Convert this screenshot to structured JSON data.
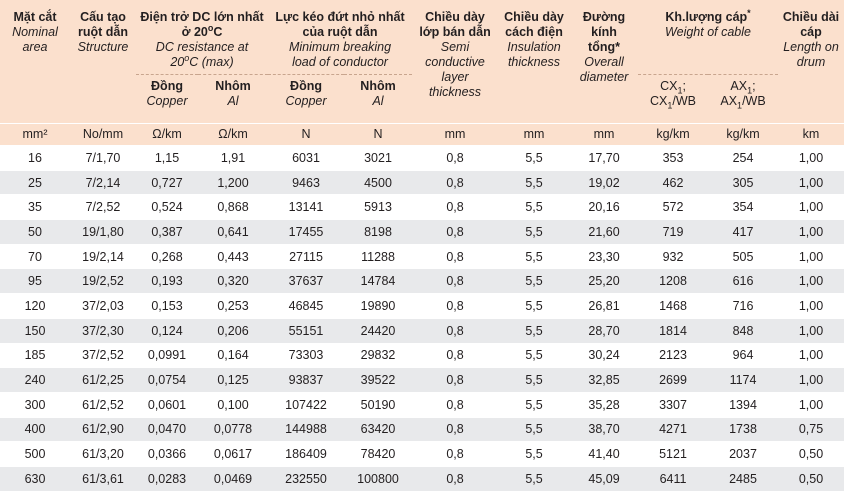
{
  "header": {
    "area": {
      "vi": "Mặt cắt",
      "en1": "Nominal",
      "en2": "area"
    },
    "structure": {
      "vi1": "Cấu tạo",
      "vi2": "ruột dẫn",
      "en": "Structure"
    },
    "dc": {
      "vi1": "Điện trở DC lớn nhất",
      "vi2": "ở 20",
      "vi2sup": "o",
      "vi2tail": "C",
      "en1": "DC resistance at",
      "en2": "20",
      "en2sup": "o",
      "en2tail": "C (max)"
    },
    "breaking": {
      "vi1": "Lực kéo đứt nhỏ nhất",
      "vi2": "của ruột dẫn",
      "en1": "Minimum breaking",
      "en2": "load of conductor"
    },
    "semi": {
      "vi1": "Chiều dày",
      "vi2": "lớp bán dẫn",
      "en1": "Semi",
      "en2": "conductive",
      "en3": "layer",
      "en4": "thickness"
    },
    "insul": {
      "vi1": "Chiều dày",
      "vi2": "cách điện",
      "en1": "Insulation",
      "en2": "thickness"
    },
    "diam": {
      "vi1": "Đường",
      "vi2": "kính",
      "vi3": "tổng*",
      "en1": "Overall",
      "en2": "diameter"
    },
    "weight": {
      "vi": "Kh.lượng cáp",
      "vi_sup": "*",
      "en": "Weight of cable"
    },
    "length": {
      "vi1": "Chiều dài",
      "vi2": "cáp",
      "en1": "Length on",
      "en2": "drum"
    },
    "copper": {
      "vi": "Đồng",
      "en": "Copper"
    },
    "alu": {
      "vi": "Nhôm",
      "en": "Al"
    },
    "cx": {
      "l1a": "CX",
      "l1sub": "1",
      "l1b": ";",
      "l2a": "CX",
      "l2sub": "1",
      "l2b": "/WB"
    },
    "ax": {
      "l1a": "AX",
      "l1sub": "1",
      "l1b": ";",
      "l2a": "AX",
      "l2sub": "1",
      "l2b": "/WB"
    }
  },
  "units": [
    "mm²",
    "No/mm",
    "Ω/km",
    "Ω/km",
    "N",
    "N",
    "mm",
    "mm",
    "mm",
    "kg/km",
    "kg/km",
    "km"
  ],
  "rows": [
    [
      "16",
      "7/1,70",
      "1,15",
      "1,91",
      "6031",
      "3021",
      "0,8",
      "5,5",
      "17,70",
      "353",
      "254",
      "1,00"
    ],
    [
      "25",
      "7/2,14",
      "0,727",
      "1,200",
      "9463",
      "4500",
      "0,8",
      "5,5",
      "19,02",
      "462",
      "305",
      "1,00"
    ],
    [
      "35",
      "7/2,52",
      "0,524",
      "0,868",
      "13141",
      "5913",
      "0,8",
      "5,5",
      "20,16",
      "572",
      "354",
      "1,00"
    ],
    [
      "50",
      "19/1,80",
      "0,387",
      "0,641",
      "17455",
      "8198",
      "0,8",
      "5,5",
      "21,60",
      "719",
      "417",
      "1,00"
    ],
    [
      "70",
      "19/2,14",
      "0,268",
      "0,443",
      "27115",
      "11288",
      "0,8",
      "5,5",
      "23,30",
      "932",
      "505",
      "1,00"
    ],
    [
      "95",
      "19/2,52",
      "0,193",
      "0,320",
      "37637",
      "14784",
      "0,8",
      "5,5",
      "25,20",
      "1208",
      "616",
      "1,00"
    ],
    [
      "120",
      "37/2,03",
      "0,153",
      "0,253",
      "46845",
      "19890",
      "0,8",
      "5,5",
      "26,81",
      "1468",
      "716",
      "1,00"
    ],
    [
      "150",
      "37/2,30",
      "0,124",
      "0,206",
      "55151",
      "24420",
      "0,8",
      "5,5",
      "28,70",
      "1814",
      "848",
      "1,00"
    ],
    [
      "185",
      "37/2,52",
      "0,0991",
      "0,164",
      "73303",
      "29832",
      "0,8",
      "5,5",
      "30,24",
      "2123",
      "964",
      "1,00"
    ],
    [
      "240",
      "61/2,25",
      "0,0754",
      "0,125",
      "93837",
      "39522",
      "0,8",
      "5,5",
      "32,85",
      "2699",
      "1174",
      "1,00"
    ],
    [
      "300",
      "61/2,52",
      "0,0601",
      "0,100",
      "107422",
      "50190",
      "0,8",
      "5,5",
      "35,28",
      "3307",
      "1394",
      "1,00"
    ],
    [
      "400",
      "61/2,90",
      "0,0470",
      "0,0778",
      "144988",
      "63420",
      "0,8",
      "5,5",
      "38,70",
      "4271",
      "1738",
      "0,75"
    ],
    [
      "500",
      "61/3,20",
      "0,0366",
      "0,0617",
      "186409",
      "78420",
      "0,8",
      "5,5",
      "41,40",
      "5121",
      "2037",
      "0,50"
    ],
    [
      "630",
      "61/3,61",
      "0,0283",
      "0,0469",
      "232550",
      "100800",
      "0,8",
      "5,5",
      "45,09",
      "6411",
      "2485",
      "0,50"
    ]
  ]
}
